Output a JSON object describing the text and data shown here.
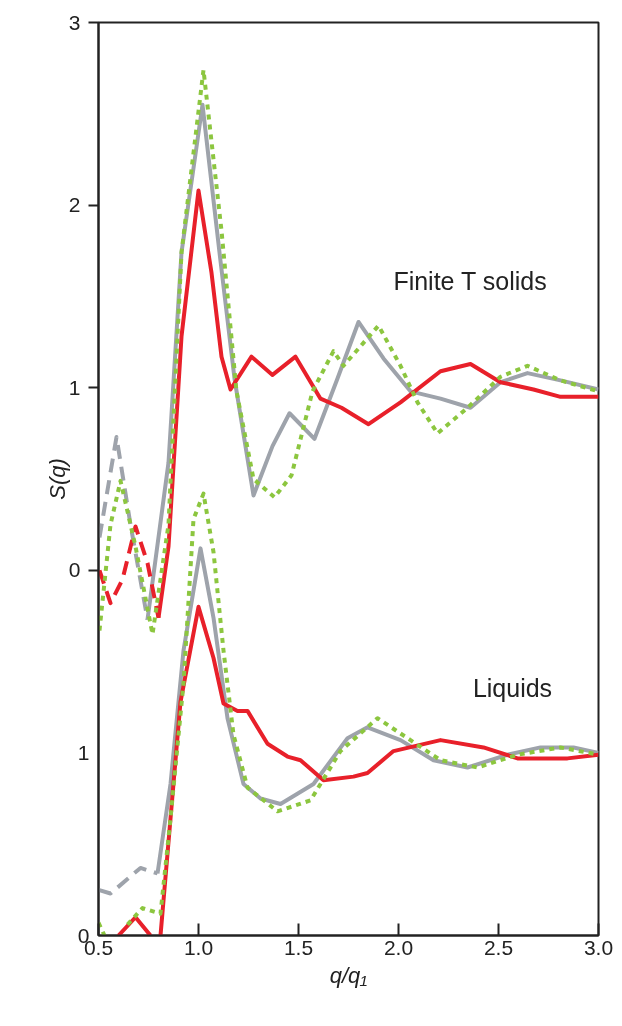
{
  "chart_data": {
    "type": "line",
    "xlabel": "q/q₁",
    "ylabel": "S(q)",
    "xlim": [
      0.5,
      3.0
    ],
    "ylim": [
      -2,
      3
    ],
    "y2lim": [
      0,
      5
    ],
    "xticks": [
      0.5,
      {
        "value": 1.0,
        "label": "1.0"
      },
      1.5,
      {
        "value": 2.0,
        "label": "2.0"
      },
      2.5,
      {
        "value": 3.0,
        "label": "3.0"
      }
    ],
    "yticks": [
      0,
      1,
      2,
      3
    ],
    "y2ticks": [
      0,
      1
    ],
    "grid": false,
    "annotations": [
      "Finite T solids",
      "Liquids"
    ],
    "series": [
      {
        "color": "#9ea3ab",
        "line_style": "dashed",
        "x": [
          0.505,
          0.59,
          0.66,
          0.745
        ],
        "values": [
          0.18,
          0.73,
          0.25,
          -0.27
        ]
      },
      {
        "color": "#9ea3ab",
        "line_style": "solid",
        "x": [
          0.745,
          0.85,
          0.915,
          1.02,
          1.105,
          1.18,
          1.275,
          1.37,
          1.455,
          1.58,
          1.695,
          1.8,
          1.925,
          2.06,
          2.21,
          2.36,
          2.51,
          2.645,
          2.81,
          3.0
        ],
        "values": [
          -0.27,
          0.59,
          1.74,
          2.55,
          1.74,
          1.05,
          0.41,
          0.68,
          0.86,
          0.72,
          1.05,
          1.36,
          1.16,
          0.98,
          0.94,
          0.89,
          1.03,
          1.08,
          1.04,
          0.99
        ]
      },
      {
        "color": "#e8202a",
        "line_style": "dashed",
        "x": [
          0.505,
          0.56,
          0.62,
          0.685,
          0.745,
          0.8
        ],
        "values": [
          0.0,
          -0.18,
          -0.05,
          0.24,
          0.04,
          -0.26
        ]
      },
      {
        "color": "#e8202a",
        "line_style": "solid",
        "x": [
          0.8,
          0.85,
          0.915,
          1.0,
          1.065,
          1.115,
          1.16,
          1.265,
          1.37,
          1.485,
          1.61,
          1.715,
          1.85,
          2.01,
          2.21,
          2.36,
          2.51,
          2.675,
          2.81,
          3.0
        ],
        "values": [
          -0.26,
          0.13,
          1.28,
          2.08,
          1.63,
          1.17,
          0.99,
          1.17,
          1.07,
          1.17,
          0.94,
          0.89,
          0.8,
          0.92,
          1.09,
          1.13,
          1.03,
          0.99,
          0.95,
          0.95
        ]
      },
      {
        "color": "#8cc63f",
        "line_style": "dotted",
        "x": [
          0.505,
          0.56,
          0.61,
          0.685,
          0.77,
          0.85,
          0.915,
          1.025,
          1.115,
          1.19,
          1.275,
          1.38,
          1.465,
          1.57,
          1.675,
          1.725,
          1.9,
          2.01,
          2.095,
          2.195,
          2.345,
          2.51,
          2.645,
          2.81,
          3.0
        ],
        "values": [
          -0.33,
          0.25,
          0.49,
          0.13,
          -0.35,
          0.25,
          1.74,
          2.74,
          1.86,
          0.98,
          0.5,
          0.4,
          0.52,
          0.98,
          1.2,
          1.12,
          1.34,
          1.12,
          0.92,
          0.75,
          0.89,
          1.06,
          1.12,
          1.04,
          0.98
        ]
      },
      {
        "color": "#9ea3ab",
        "line_style": "dashed",
        "axis": "y2",
        "x": [
          0.5,
          0.56,
          0.71,
          0.795
        ],
        "values": [
          0.25,
          0.23,
          0.37,
          0.34
        ]
      },
      {
        "color": "#9ea3ab",
        "line_style": "solid",
        "axis": "y2",
        "x": [
          0.795,
          0.86,
          0.925,
          1.01,
          1.075,
          1.145,
          1.225,
          1.31,
          1.41,
          1.575,
          1.745,
          1.845,
          2.01,
          2.175,
          2.345,
          2.545,
          2.71,
          2.875,
          3.0
        ],
        "values": [
          0.34,
          0.83,
          1.56,
          2.12,
          1.74,
          1.19,
          0.83,
          0.75,
          0.72,
          0.83,
          1.08,
          1.14,
          1.07,
          0.96,
          0.92,
          0.99,
          1.03,
          1.03,
          1.0
        ]
      },
      {
        "color": "#e8202a",
        "line_style": "solid",
        "axis": "y2",
        "x": [
          0.6,
          0.685,
          0.76,
          0.78,
          0.81,
          0.86,
          0.91,
          1.0,
          1.075,
          1.125,
          1.195,
          1.245,
          1.345,
          1.445,
          1.51,
          1.625,
          1.775,
          1.845,
          1.975,
          2.21,
          2.425,
          2.595,
          2.845,
          3.0
        ],
        "values": [
          0.0,
          0.1,
          0.0,
          null,
          0.0,
          0.64,
          1.28,
          1.8,
          1.52,
          1.27,
          1.23,
          1.23,
          1.05,
          0.98,
          0.96,
          0.85,
          0.87,
          0.89,
          1.01,
          1.07,
          1.03,
          0.97,
          0.97,
          0.99
        ]
      },
      {
        "color": "#8cc63f",
        "line_style": "dotted",
        "axis": "y2",
        "x": [
          0.5,
          0.53,
          0.56,
          0.645,
          0.72,
          0.81,
          0.86,
          0.925,
          0.975,
          1.025,
          1.075,
          1.125,
          1.175,
          1.245,
          1.395,
          1.56,
          1.71,
          1.895,
          2.06,
          2.21,
          2.395,
          2.595,
          2.81,
          3.0
        ],
        "values": [
          0.07,
          0.0,
          null,
          0.06,
          0.15,
          0.12,
          0.64,
          1.38,
          2.28,
          2.42,
          2.1,
          1.56,
          1.1,
          0.81,
          0.68,
          0.74,
          1.01,
          1.19,
          1.07,
          0.96,
          0.92,
          0.99,
          1.03,
          0.99
        ]
      }
    ]
  }
}
